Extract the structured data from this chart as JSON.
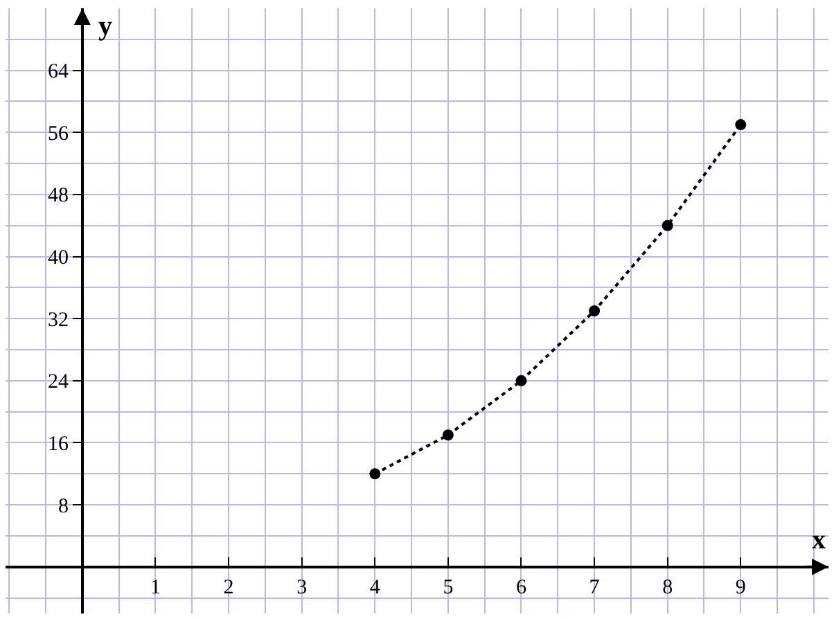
{
  "chart_data": {
    "type": "line",
    "xlabel": "x",
    "ylabel": "y",
    "x": [
      4,
      5,
      6,
      7,
      8,
      9
    ],
    "series": [
      {
        "color": "#000000",
        "values": [
          12,
          17,
          24,
          33,
          44,
          57
        ]
      }
    ],
    "xlim": [
      -1.05,
      10.2
    ],
    "ylim": [
      -6,
      72
    ],
    "xticks": [
      1,
      2,
      3,
      4,
      5,
      6,
      7,
      8,
      9
    ],
    "yticks": [
      8,
      16,
      24,
      32,
      40,
      48,
      56,
      64
    ],
    "grid": true,
    "marker": "circle",
    "line_style": "dotted",
    "legend": false
  }
}
